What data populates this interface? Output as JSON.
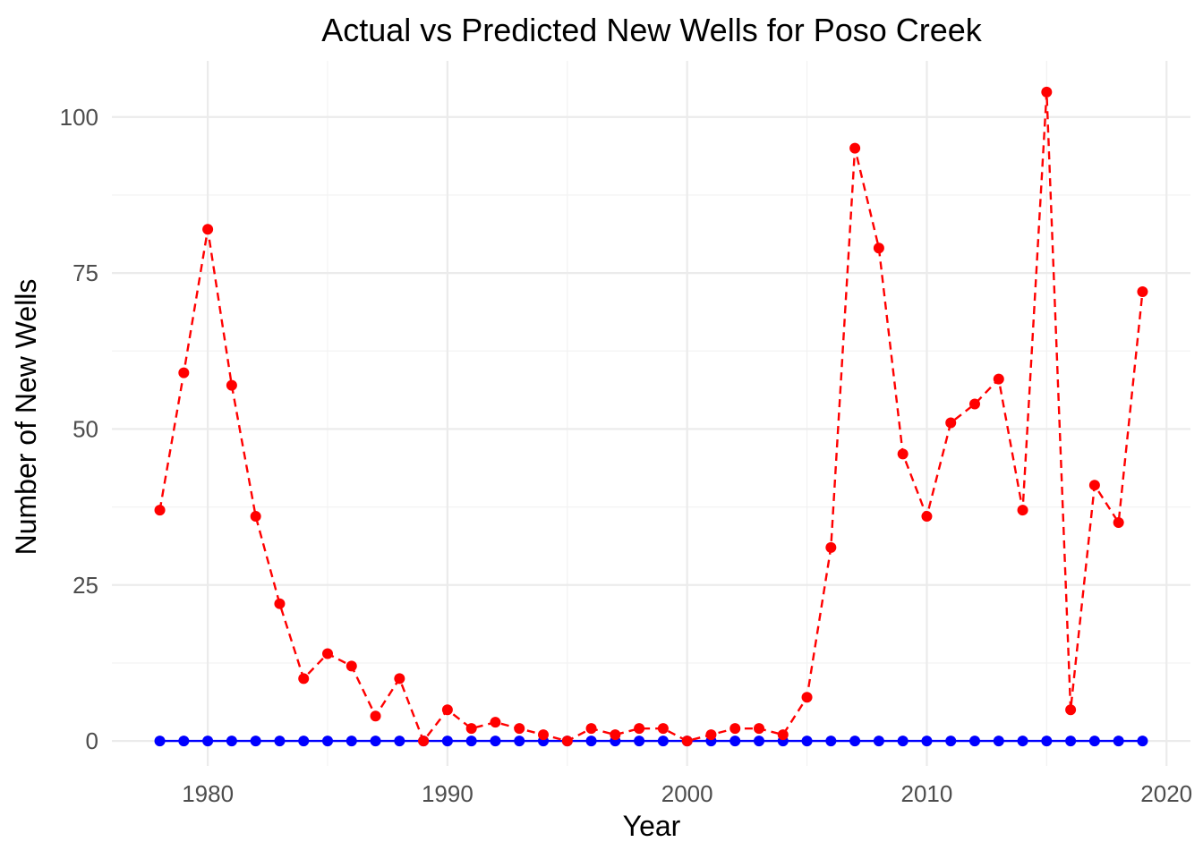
{
  "chart_data": {
    "type": "line",
    "title": "Actual vs Predicted New Wells for Poso Creek",
    "xlabel": "Year",
    "ylabel": "Number of New Wells",
    "xlim": [
      1976,
      2021
    ],
    "ylim": [
      -4,
      109
    ],
    "x_ticks": [
      1980,
      1990,
      2000,
      2010,
      2020
    ],
    "x_tick_labels": [
      "1980",
      "1990",
      "2000",
      "2010",
      "2020"
    ],
    "y_ticks": [
      0,
      25,
      50,
      75,
      100
    ],
    "y_tick_labels": [
      "0",
      "25",
      "50",
      "75",
      "100"
    ],
    "grid": true,
    "legend": "none",
    "x": [
      1978,
      1979,
      1980,
      1981,
      1982,
      1983,
      1984,
      1985,
      1986,
      1987,
      1988,
      1989,
      1990,
      1991,
      1992,
      1993,
      1994,
      1995,
      1996,
      1997,
      1998,
      1999,
      2000,
      2001,
      2002,
      2003,
      2004,
      2005,
      2006,
      2007,
      2008,
      2009,
      2010,
      2011,
      2012,
      2013,
      2014,
      2015,
      2016,
      2017,
      2018,
      2019
    ],
    "series": [
      {
        "color": "#ff0000",
        "line_style": "dashed",
        "values": [
          37,
          59,
          82,
          57,
          36,
          22,
          10,
          14,
          12,
          4,
          10,
          0,
          5,
          2,
          3,
          2,
          1,
          0,
          2,
          1,
          2,
          2,
          0,
          1,
          2,
          2,
          1,
          7,
          31,
          95,
          79,
          46,
          36,
          51,
          54,
          58,
          37,
          104,
          5,
          41,
          35,
          72
        ]
      },
      {
        "color": "#0000ff",
        "line_style": "solid",
        "values": [
          0,
          0,
          0,
          0,
          0,
          0,
          0,
          0,
          0,
          0,
          0,
          0,
          0,
          0,
          0,
          0,
          0,
          0,
          0,
          0,
          0,
          0,
          0,
          0,
          0,
          0,
          0,
          0,
          0,
          0,
          0,
          0,
          0,
          0,
          0,
          0,
          0,
          0,
          0,
          0,
          0,
          0
        ]
      }
    ]
  }
}
